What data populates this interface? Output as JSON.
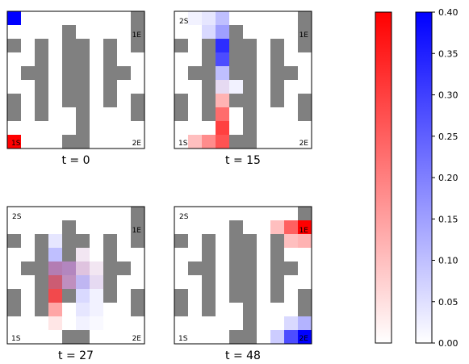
{
  "wall_color": "#808080",
  "red_color": "#ff0000",
  "blue_color": "#0000ff",
  "chart_data": {
    "type": "heatmap",
    "grid_size": [
      10,
      10
    ],
    "walls": [
      [
        0,
        9
      ],
      [
        1,
        4
      ],
      [
        1,
        9
      ],
      [
        2,
        0
      ],
      [
        2,
        2
      ],
      [
        2,
        4
      ],
      [
        2,
        5
      ],
      [
        2,
        7
      ],
      [
        2,
        9
      ],
      [
        3,
        2
      ],
      [
        3,
        4
      ],
      [
        3,
        5
      ],
      [
        3,
        7
      ],
      [
        4,
        1
      ],
      [
        4,
        2
      ],
      [
        4,
        4
      ],
      [
        4,
        5
      ],
      [
        4,
        7
      ],
      [
        4,
        8
      ],
      [
        5,
        2
      ],
      [
        5,
        4
      ],
      [
        5,
        5
      ],
      [
        5,
        7
      ],
      [
        6,
        0
      ],
      [
        6,
        2
      ],
      [
        6,
        4
      ],
      [
        6,
        5
      ],
      [
        6,
        7
      ],
      [
        6,
        9
      ],
      [
        7,
        0
      ],
      [
        7,
        2
      ],
      [
        7,
        5
      ],
      [
        7,
        9
      ],
      [
        8,
        5
      ],
      [
        9,
        4
      ],
      [
        9,
        5
      ]
    ],
    "panels": [
      {
        "title": "t = 0",
        "labels": [
          {
            "text": "1E",
            "pos": "top-right"
          },
          {
            "text": "1S",
            "pos": "bottom-left"
          },
          {
            "text": "2E",
            "pos": "bottom-right"
          }
        ],
        "cells": [
          {
            "r": 0,
            "c": 0,
            "red": 0.0,
            "blue": 0.4
          },
          {
            "r": 9,
            "c": 0,
            "red": 0.4,
            "blue": 0.0
          }
        ]
      },
      {
        "title": "t = 15",
        "labels": [
          {
            "text": "2S",
            "pos": "top-left"
          },
          {
            "text": "1E",
            "pos": "top-right"
          },
          {
            "text": "1S",
            "pos": "bottom-left"
          },
          {
            "text": "2E",
            "pos": "bottom-right"
          }
        ],
        "cells": [
          {
            "r": 0,
            "c": 1,
            "red": 0.0,
            "blue": 0.02
          },
          {
            "r": 0,
            "c": 2,
            "red": 0.0,
            "blue": 0.04
          },
          {
            "r": 0,
            "c": 3,
            "red": 0.0,
            "blue": 0.1
          },
          {
            "r": 1,
            "c": 2,
            "red": 0.0,
            "blue": 0.06
          },
          {
            "r": 1,
            "c": 3,
            "red": 0.0,
            "blue": 0.15
          },
          {
            "r": 2,
            "c": 3,
            "red": 0.0,
            "blue": 0.33
          },
          {
            "r": 3,
            "c": 3,
            "red": 0.0,
            "blue": 0.28
          },
          {
            "r": 4,
            "c": 3,
            "red": 0.0,
            "blue": 0.1
          },
          {
            "r": 5,
            "c": 3,
            "red": 0.02,
            "blue": 0.04
          },
          {
            "r": 5,
            "c": 4,
            "red": 0.0,
            "blue": 0.02
          },
          {
            "r": 6,
            "c": 3,
            "red": 0.12,
            "blue": 0.0
          },
          {
            "r": 7,
            "c": 3,
            "red": 0.23,
            "blue": 0.0
          },
          {
            "r": 8,
            "c": 3,
            "red": 0.3,
            "blue": 0.0
          },
          {
            "r": 9,
            "c": 1,
            "red": 0.1,
            "blue": 0.0
          },
          {
            "r": 9,
            "c": 2,
            "red": 0.18,
            "blue": 0.0
          },
          {
            "r": 9,
            "c": 3,
            "red": 0.27,
            "blue": 0.0
          }
        ]
      },
      {
        "title": "t = 27",
        "labels": [
          {
            "text": "2S",
            "pos": "top-left"
          },
          {
            "text": "1E",
            "pos": "top-right"
          },
          {
            "text": "1S",
            "pos": "bottom-left"
          },
          {
            "text": "2E",
            "pos": "bottom-right"
          }
        ],
        "cells": [
          {
            "r": 2,
            "c": 3,
            "red": 0.0,
            "blue": 0.04
          },
          {
            "r": 3,
            "c": 3,
            "red": 0.0,
            "blue": 0.1
          },
          {
            "r": 3,
            "c": 5,
            "red": 0.02,
            "blue": 0.02
          },
          {
            "r": 4,
            "c": 3,
            "red": 0.12,
            "blue": 0.12
          },
          {
            "r": 4,
            "c": 4,
            "red": 0.1,
            "blue": 0.12
          },
          {
            "r": 4,
            "c": 5,
            "red": 0.05,
            "blue": 0.05
          },
          {
            "r": 4,
            "c": 6,
            "red": 0.02,
            "blue": 0.02
          },
          {
            "r": 5,
            "c": 3,
            "red": 0.22,
            "blue": 0.08
          },
          {
            "r": 5,
            "c": 4,
            "red": 0.1,
            "blue": 0.1
          },
          {
            "r": 5,
            "c": 5,
            "red": 0.02,
            "blue": 0.1
          },
          {
            "r": 5,
            "c": 6,
            "red": 0.02,
            "blue": 0.04
          },
          {
            "r": 6,
            "c": 3,
            "red": 0.28,
            "blue": 0.02
          },
          {
            "r": 6,
            "c": 5,
            "red": 0.0,
            "blue": 0.06
          },
          {
            "r": 6,
            "c": 6,
            "red": 0.0,
            "blue": 0.02
          },
          {
            "r": 7,
            "c": 3,
            "red": 0.14,
            "blue": 0.0
          },
          {
            "r": 7,
            "c": 5,
            "red": 0.0,
            "blue": 0.04
          },
          {
            "r": 7,
            "c": 6,
            "red": 0.0,
            "blue": 0.02
          },
          {
            "r": 8,
            "c": 3,
            "red": 0.04,
            "blue": 0.0
          },
          {
            "r": 8,
            "c": 5,
            "red": 0.0,
            "blue": 0.02
          },
          {
            "r": 8,
            "c": 6,
            "red": 0.0,
            "blue": 0.01
          }
        ]
      },
      {
        "title": "t = 48",
        "labels": [
          {
            "text": "2S",
            "pos": "top-left"
          },
          {
            "text": "1E",
            "pos": "top-right"
          },
          {
            "text": "1S",
            "pos": "bottom-left"
          },
          {
            "text": "2E",
            "pos": "bottom-right"
          }
        ],
        "cells": [
          {
            "r": 1,
            "c": 7,
            "red": 0.1,
            "blue": 0.0
          },
          {
            "r": 1,
            "c": 8,
            "red": 0.25,
            "blue": 0.0
          },
          {
            "r": 1,
            "c": 9,
            "red": 0.4,
            "blue": 0.0
          },
          {
            "r": 2,
            "c": 8,
            "red": 0.1,
            "blue": 0.0
          },
          {
            "r": 2,
            "c": 9,
            "red": 0.12,
            "blue": 0.0
          },
          {
            "r": 8,
            "c": 8,
            "red": 0.0,
            "blue": 0.06
          },
          {
            "r": 8,
            "c": 9,
            "red": 0.0,
            "blue": 0.12
          },
          {
            "r": 9,
            "c": 7,
            "red": 0.0,
            "blue": 0.08
          },
          {
            "r": 9,
            "c": 8,
            "red": 0.0,
            "blue": 0.28
          },
          {
            "r": 9,
            "c": 9,
            "red": 0.0,
            "blue": 0.4
          }
        ]
      }
    ],
    "colorbars": [
      {
        "name": "red",
        "ticks": [],
        "range": [
          0,
          0.4
        ]
      },
      {
        "name": "blue",
        "ticks": [
          "0.00",
          "0.05",
          "0.10",
          "0.15",
          "0.20",
          "0.25",
          "0.30",
          "0.35",
          "0.40"
        ],
        "range": [
          0,
          0.4
        ]
      }
    ]
  }
}
